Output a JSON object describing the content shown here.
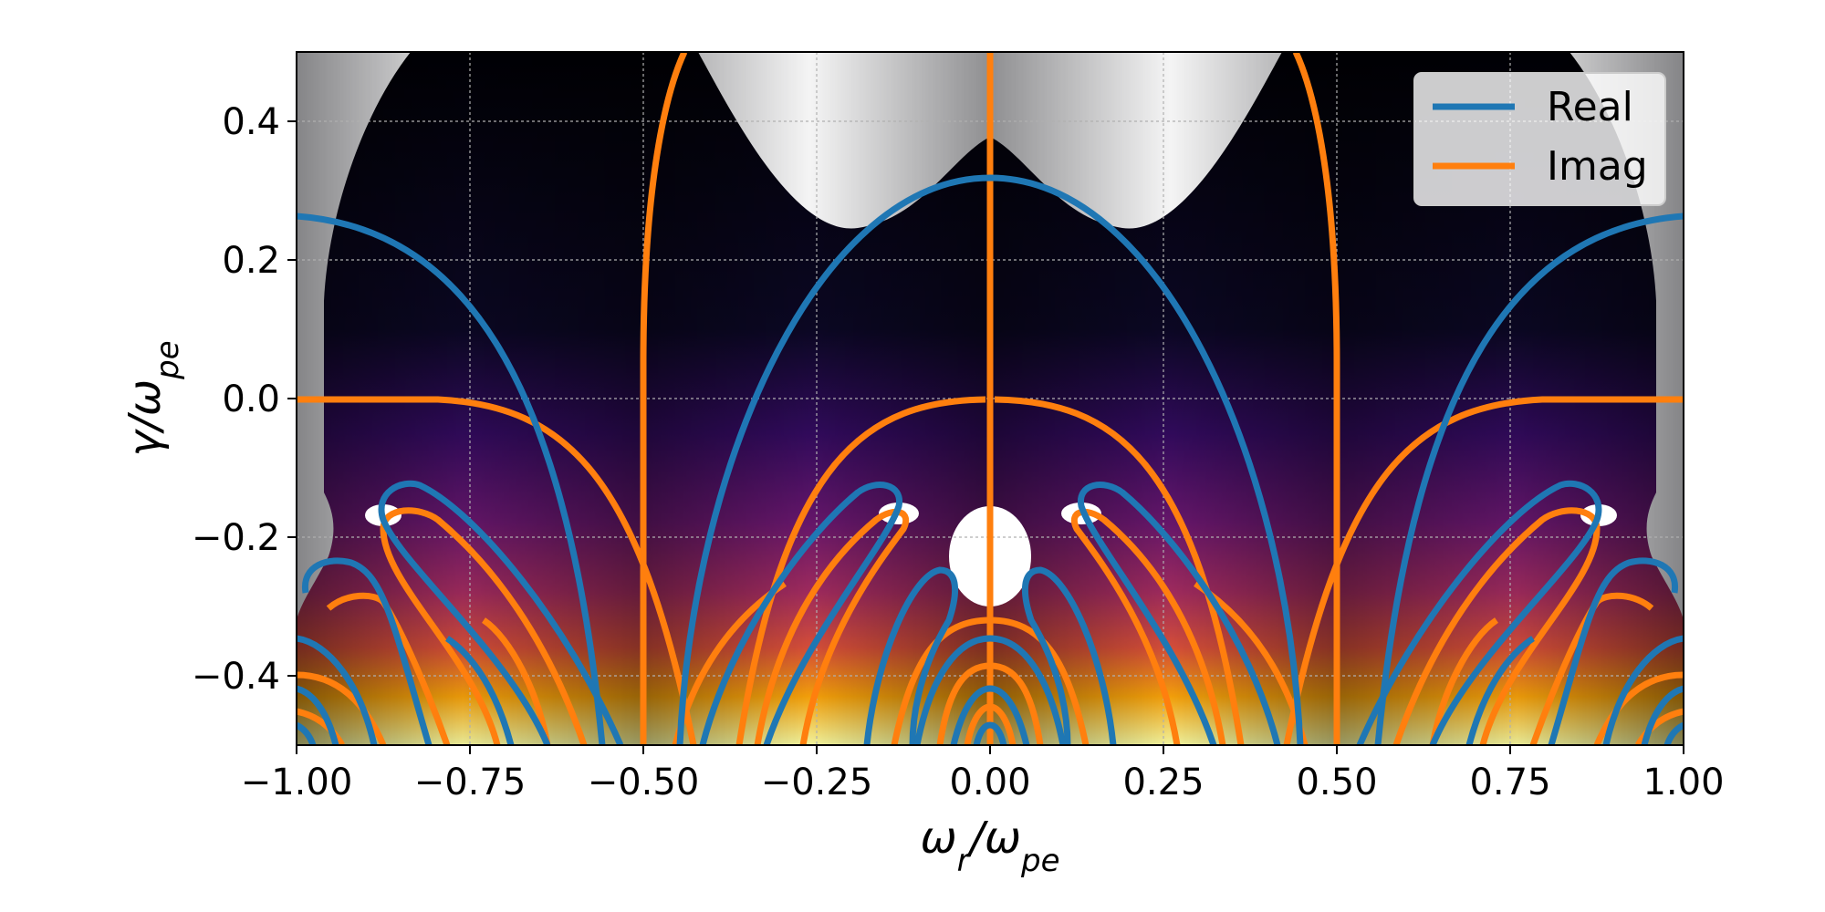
{
  "chart_data": {
    "type": "contour",
    "title": "",
    "xlabel": "ωr/ωpe",
    "ylabel": "γ/ωpe",
    "xlim": [
      -1.0,
      1.0
    ],
    "ylim": [
      -0.5,
      0.5
    ],
    "grid": true,
    "legend_position": "top-right",
    "x_ticks": [
      "−1.00",
      "−0.75",
      "−0.50",
      "−0.25",
      "0.00",
      "0.25",
      "0.50",
      "0.75",
      "1.00"
    ],
    "x_tick_values": [
      -1.0,
      -0.75,
      -0.5,
      -0.25,
      0.0,
      0.25,
      0.5,
      0.75,
      1.0
    ],
    "y_ticks": [
      "−0.4",
      "−0.2",
      "0.0",
      "0.2",
      "0.4"
    ],
    "y_tick_values": [
      -0.4,
      -0.2,
      0.0,
      0.2,
      0.4
    ],
    "background": "heatmap of |dispersion function| (inferno colormap, masked white where large)",
    "series": [
      {
        "name": "Real",
        "color": "#1f77b4"
      },
      {
        "name": "Imag",
        "color": "#ff7f0e"
      }
    ]
  },
  "legend": {
    "real_label": "Real",
    "imag_label": "Imag"
  },
  "colors": {
    "real": "#1f77b4",
    "imag": "#ff7f0e",
    "grid": "#b0b0b0"
  }
}
